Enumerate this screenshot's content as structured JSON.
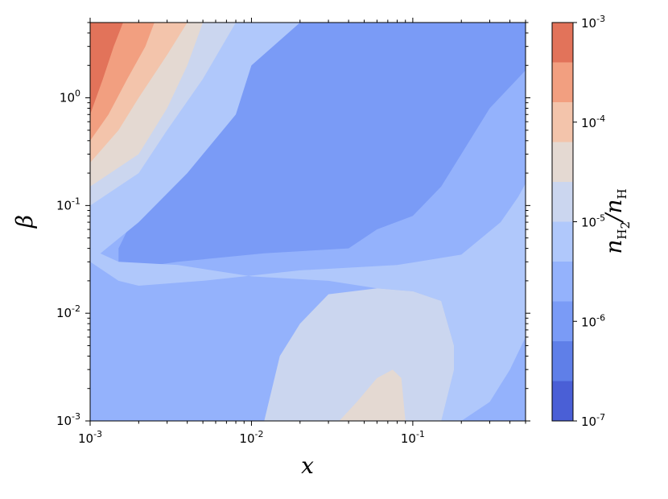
{
  "chart_data": {
    "type": "contour",
    "title": "",
    "xlabel": "x",
    "ylabel": "β",
    "xscale": "log",
    "yscale": "log",
    "xlim": [
      0.001,
      0.5
    ],
    "ylim": [
      0.001,
      5.0
    ],
    "x_ticks": [
      {
        "value": 0.001,
        "base": "10",
        "exp": "-3"
      },
      {
        "value": 0.01,
        "base": "10",
        "exp": "-2"
      },
      {
        "value": 0.1,
        "base": "10",
        "exp": "-1"
      }
    ],
    "y_ticks": [
      {
        "value": 0.001,
        "base": "10",
        "exp": "-3"
      },
      {
        "value": 0.01,
        "base": "10",
        "exp": "-2"
      },
      {
        "value": 0.1,
        "base": "10",
        "exp": "-1"
      },
      {
        "value": 1.0,
        "base": "10",
        "exp": "0"
      }
    ],
    "colorbar": {
      "label_main": "n",
      "label_sub1": "H",
      "label_subsub": "2",
      "label_sep": "/",
      "label_main2": "n",
      "label_sub2": "H",
      "scale": "log",
      "range": [
        1e-07,
        0.001
      ],
      "ticks": [
        {
          "value": 1e-07,
          "base": "10",
          "exp": "-7"
        },
        {
          "value": 1e-06,
          "base": "10",
          "exp": "-6"
        },
        {
          "value": 1e-05,
          "base": "10",
          "exp": "-5"
        },
        {
          "value": 0.0001,
          "base": "10",
          "exp": "-4"
        },
        {
          "value": 0.001,
          "base": "10",
          "exp": "-3"
        }
      ],
      "levels_log10": [
        -7,
        -6.6,
        -6.2,
        -5.8,
        -5.4,
        -5.0,
        -4.6,
        -4.2,
        -3.8,
        -3.4,
        -3.0
      ],
      "colors": [
        "#4a5fd6",
        "#5f7fe8",
        "#7a9bf6",
        "#94b2fc",
        "#b0c8fb",
        "#cbd6ef",
        "#e4d9d2",
        "#f3c4ab",
        "#f29f80",
        "#e2735a",
        "#c0282c"
      ]
    },
    "regions": [
      {
        "level_index": 3,
        "polygon": [
          [
            0.001,
            0.001
          ],
          [
            0.5,
            0.001
          ],
          [
            0.5,
            5.0
          ],
          [
            0.001,
            5.0
          ]
        ]
      },
      {
        "level_index": 2,
        "polygon": [
          [
            0.0015,
            0.025
          ],
          [
            0.0035,
            0.03
          ],
          [
            0.012,
            0.036
          ],
          [
            0.04,
            0.04
          ],
          [
            0.06,
            0.06
          ],
          [
            0.1,
            0.08
          ],
          [
            0.15,
            0.15
          ],
          [
            0.2,
            0.3
          ],
          [
            0.3,
            0.8
          ],
          [
            0.5,
            1.8
          ],
          [
            0.5,
            5.0
          ],
          [
            0.02,
            5.0
          ],
          [
            0.01,
            2.0
          ],
          [
            0.005,
            0.5
          ],
          [
            0.003,
            0.18
          ],
          [
            0.0018,
            0.07
          ],
          [
            0.0015,
            0.04
          ]
        ]
      },
      {
        "level_index": 4,
        "polygon": [
          [
            0.001,
            0.03
          ],
          [
            0.002,
            0.07
          ],
          [
            0.004,
            0.2
          ],
          [
            0.008,
            0.7
          ],
          [
            0.01,
            2.0
          ],
          [
            0.02,
            5.0
          ],
          [
            0.001,
            5.0
          ]
        ]
      },
      {
        "level_index": 4,
        "polygon": [
          [
            0.0035,
            0.001
          ],
          [
            0.2,
            0.001
          ],
          [
            0.3,
            0.0015
          ],
          [
            0.4,
            0.003
          ],
          [
            0.5,
            0.006
          ],
          [
            0.5,
            0.16
          ],
          [
            0.45,
            0.12
          ],
          [
            0.35,
            0.07
          ],
          [
            0.2,
            0.035
          ],
          [
            0.08,
            0.028
          ],
          [
            0.02,
            0.025
          ],
          [
            0.005,
            0.02
          ],
          [
            0.002,
            0.018
          ],
          [
            0.0015,
            0.02
          ],
          [
            0.0012,
            0.025
          ],
          [
            0.001,
            0.03
          ],
          [
            0.001,
            0.04
          ],
          [
            0.0012,
            0.035
          ],
          [
            0.0015,
            0.03
          ],
          [
            0.0035,
            0.028
          ],
          [
            0.01,
            0.022
          ],
          [
            0.03,
            0.02
          ],
          [
            0.06,
            0.017
          ],
          [
            0.1,
            0.016
          ],
          [
            0.15,
            0.013
          ],
          [
            0.18,
            0.005
          ],
          [
            0.18,
            0.003
          ],
          [
            0.15,
            0.0015
          ],
          [
            0.12,
            0.001
          ]
        ]
      },
      {
        "level_index": 5,
        "polygon": [
          [
            0.001,
            0.1
          ],
          [
            0.002,
            0.2
          ],
          [
            0.003,
            0.5
          ],
          [
            0.005,
            1.5
          ],
          [
            0.008,
            5.0
          ],
          [
            0.001,
            5.0
          ]
        ]
      },
      {
        "level_index": 5,
        "polygon": [
          [
            0.012,
            0.001
          ],
          [
            0.15,
            0.001
          ],
          [
            0.18,
            0.003
          ],
          [
            0.18,
            0.005
          ],
          [
            0.15,
            0.013
          ],
          [
            0.1,
            0.016
          ],
          [
            0.06,
            0.017
          ],
          [
            0.03,
            0.015
          ],
          [
            0.02,
            0.008
          ],
          [
            0.015,
            0.004
          ]
        ]
      },
      {
        "level_index": 6,
        "polygon": [
          [
            0.001,
            0.15
          ],
          [
            0.002,
            0.3
          ],
          [
            0.003,
            0.8
          ],
          [
            0.004,
            2.0
          ],
          [
            0.005,
            5.0
          ],
          [
            0.001,
            5.0
          ]
        ]
      },
      {
        "level_index": 6,
        "polygon": [
          [
            0.035,
            0.001
          ],
          [
            0.09,
            0.001
          ],
          [
            0.085,
            0.0025
          ],
          [
            0.075,
            0.003
          ],
          [
            0.06,
            0.0025
          ],
          [
            0.045,
            0.0015
          ]
        ]
      },
      {
        "level_index": 7,
        "polygon": [
          [
            0.001,
            0.25
          ],
          [
            0.0015,
            0.5
          ],
          [
            0.002,
            1.0
          ],
          [
            0.003,
            2.5
          ],
          [
            0.004,
            5.0
          ],
          [
            0.001,
            5.0
          ]
        ]
      },
      {
        "level_index": 8,
        "polygon": [
          [
            0.001,
            0.4
          ],
          [
            0.0013,
            0.7
          ],
          [
            0.0017,
            1.5
          ],
          [
            0.0022,
            3.0
          ],
          [
            0.0025,
            5.0
          ],
          [
            0.001,
            5.0
          ]
        ]
      },
      {
        "level_index": 9,
        "polygon": [
          [
            0.001,
            0.7
          ],
          [
            0.0012,
            1.5
          ],
          [
            0.0014,
            3.0
          ],
          [
            0.0016,
            5.0
          ],
          [
            0.001,
            5.0
          ]
        ]
      }
    ]
  }
}
